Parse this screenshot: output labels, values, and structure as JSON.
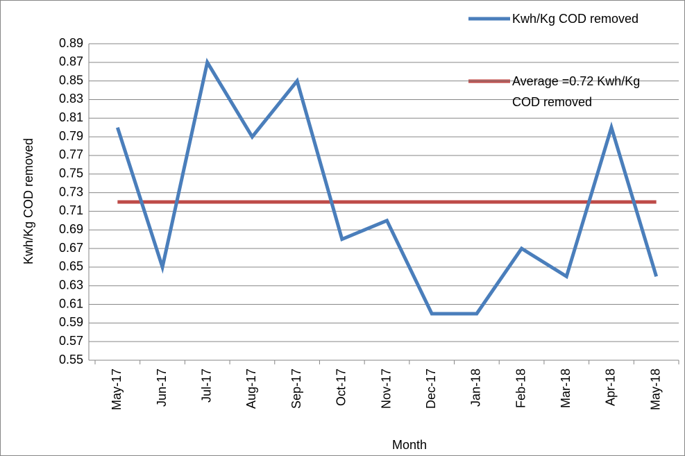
{
  "chart_data": {
    "type": "line",
    "x_label": "Month",
    "y_label": "Kwh/Kg COD removed",
    "categories": [
      "May-17",
      "Jun-17",
      "Jul-17",
      "Aug-17",
      "Sep-17",
      "Oct-17",
      "Nov-17",
      "Dec-17",
      "Jan-18",
      "Feb-18",
      "Mar-18",
      "Apr-18",
      "May-18"
    ],
    "series": [
      {
        "name": "Kwh/Kg COD removed",
        "color": "#4a7ebb",
        "values": [
          0.8,
          0.65,
          0.87,
          0.79,
          0.85,
          0.68,
          0.7,
          0.6,
          0.6,
          0.67,
          0.64,
          0.8,
          0.64
        ]
      },
      {
        "name": "Average =0.72 Kwh/Kg COD removed",
        "color": "#be4b48",
        "values": [
          0.72,
          0.72,
          0.72,
          0.72,
          0.72,
          0.72,
          0.72,
          0.72,
          0.72,
          0.72,
          0.72,
          0.72,
          0.72
        ]
      }
    ],
    "ylim": [
      0.55,
      0.89
    ],
    "yticks": [
      0.55,
      0.57,
      0.59,
      0.61,
      0.63,
      0.65,
      0.67,
      0.69,
      0.71,
      0.73,
      0.75,
      0.77,
      0.79,
      0.81,
      0.83,
      0.85,
      0.87,
      0.89
    ],
    "grid": true
  }
}
